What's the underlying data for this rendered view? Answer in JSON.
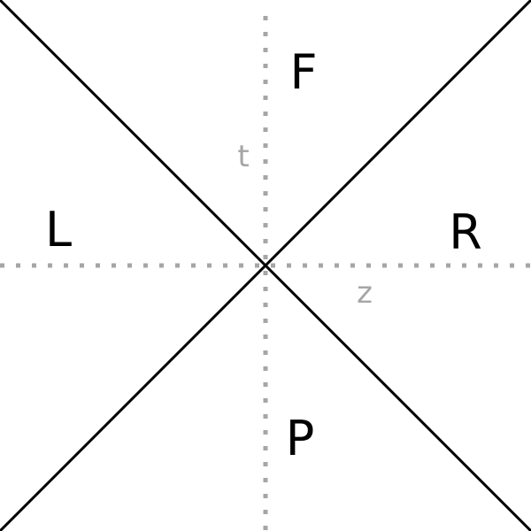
{
  "regions": {
    "top": "F",
    "left": "L",
    "right": "R",
    "bottom": "P"
  },
  "axes": {
    "vertical": "t",
    "horizontal": "z"
  },
  "colors": {
    "background": "#ffffff",
    "diagonal_lines": "#000000",
    "dotted_axes": "#a6a6a6",
    "region_labels": "#000000",
    "axis_labels": "#a6a6a6"
  }
}
